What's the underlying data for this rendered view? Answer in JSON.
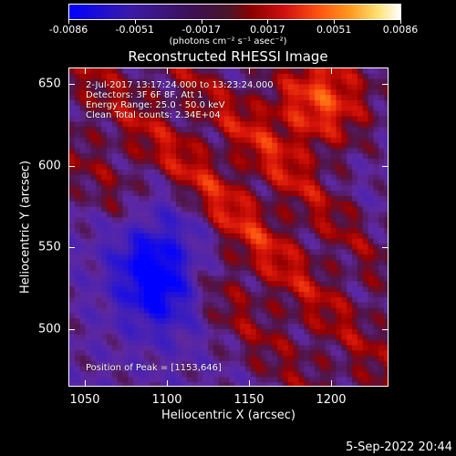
{
  "colorbar": {
    "ticks": [
      "-0.0086",
      "-0.0051",
      "-0.0017",
      "0.0017",
      "0.0051",
      "0.0086"
    ],
    "units": "(photons cm⁻² s⁻¹ asec⁻²)"
  },
  "chart_data": {
    "type": "heatmap",
    "title": "Reconstructed RHESSI Image",
    "xlabel": "Heliocentric X (arcsec)",
    "ylabel": "Heliocentric Y (arcsec)",
    "xlim": [
      1040,
      1235
    ],
    "ylim": [
      465,
      660
    ],
    "x_ticks": [
      "1050",
      "1100",
      "1150",
      "1200"
    ],
    "y_ticks": [
      "500",
      "550",
      "600",
      "650"
    ],
    "x_tick_values": [
      1050,
      1100,
      1150,
      1200
    ],
    "y_tick_values": [
      500,
      550,
      600,
      650
    ],
    "color_range": [
      -0.0086,
      0.0086
    ],
    "peak_position": [
      1153,
      646
    ],
    "peak_text": "Position of Peak = [1153,646]"
  },
  "info": {
    "line1": "2-Jul-2017 13:17:24.000 to 13:23:24.000",
    "line2": "Detectors: 3F 6F 8F, Att 1",
    "line3": "Energy Range: 25.0 - 50.0 keV",
    "line4": "Clean     Total counts: 2.34E+04"
  },
  "footer": {
    "date": "5-Sep-2022 20:44"
  }
}
